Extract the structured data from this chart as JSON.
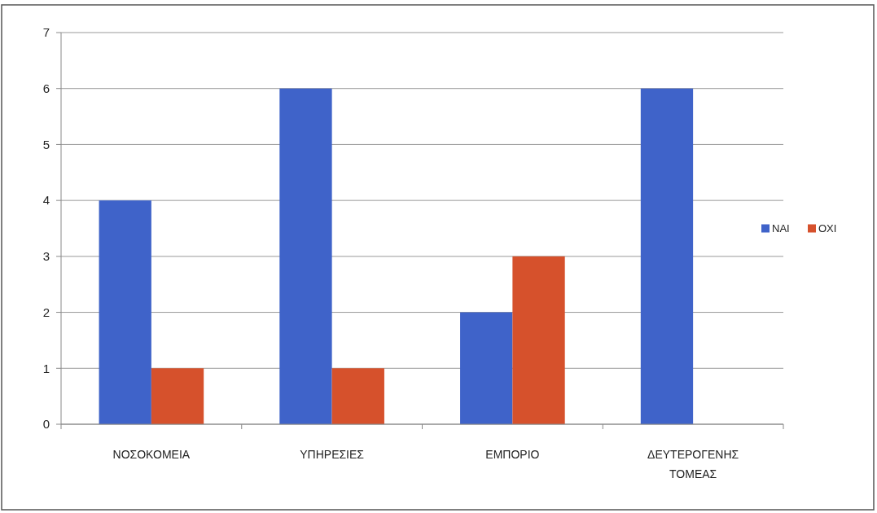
{
  "chart_data": {
    "type": "bar",
    "categories": [
      "ΝΟΣΟΚΟΜΕΙΑ",
      "ΥΠΗΡΕΣΙΕΣ",
      "ΕΜΠΟΡΙΟ",
      "ΔΕΥΤΕΡΟΓΕΝΗΣ ΤΟΜΕΑΣ"
    ],
    "series": [
      {
        "name": "ΝΑΙ",
        "color": "#3f63c9",
        "values": [
          4,
          6,
          2,
          6
        ]
      },
      {
        "name": "ΟΧΙ",
        "color": "#d6512c",
        "values": [
          1,
          1,
          3,
          0
        ]
      }
    ],
    "ylim": [
      0,
      7
    ],
    "yticks": [
      0,
      1,
      2,
      3,
      4,
      5,
      6,
      7
    ],
    "grid": "y",
    "legend": "right"
  }
}
